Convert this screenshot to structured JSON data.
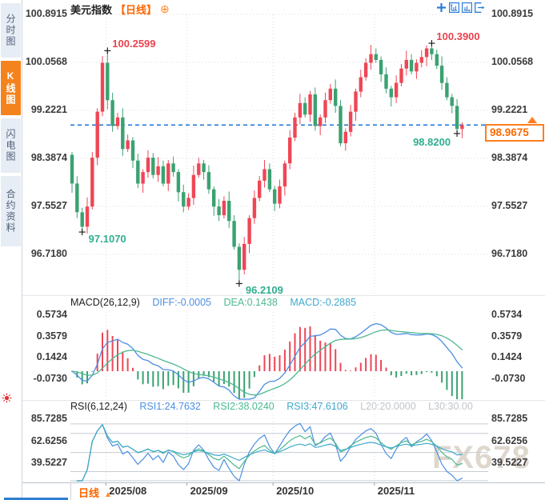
{
  "ui": {
    "sidebar": {
      "tabs": [
        {
          "label": "分时图",
          "name": "tab-time-share-chart",
          "active": false
        },
        {
          "label": "K线图",
          "name": "tab-kline-chart",
          "active": true
        },
        {
          "label": "闪电图",
          "name": "tab-lightning-chart",
          "active": false
        },
        {
          "label": "合约资料",
          "name": "tab-contract-info",
          "active": false
        }
      ]
    },
    "header": {
      "symbol": "美元指数",
      "period_tag": "【日线】"
    },
    "toolbar": {
      "icons": [
        "crosshair",
        "left-axis-panel",
        "right-axis-panel",
        "pop-out"
      ]
    },
    "price_tag": {
      "value": "98.9675"
    },
    "bottom_bar": {
      "period_label": "日线"
    },
    "watermark": "FX678"
  },
  "macd_panel": {
    "title": "MACD(26,12,9)",
    "diff": "DIFF:-0.0005",
    "dea": "DEA:0.1438",
    "macd": "MACD:-0.2885",
    "y_ticks": [
      "0.5734",
      "0.3579",
      "0.1424",
      "-0.0730"
    ]
  },
  "rsi_panel": {
    "title": "RSI(6,12,24)",
    "rsi1": "RSI1:24.7632",
    "rsi2": "RSI2:38.0240",
    "rsi3": "RSI3:47.6106",
    "l20": "L20:20.0000",
    "l30": "L30:30.00",
    "y_ticks": [
      "85.7285",
      "62.6256",
      "39.5227"
    ],
    "ref_lines": [
      80,
      70,
      50,
      30,
      20
    ]
  },
  "chart_data": {
    "type": "candlestick",
    "title": "美元指数 日线 (US Dollar Index, daily)",
    "y_ticks": [
      "100.8915",
      "100.0568",
      "99.2221",
      "98.3874",
      "97.5527",
      "96.7180"
    ],
    "ylim": [
      96.718,
      100.8915
    ],
    "x_month_ticks": [
      {
        "label": "2025/08",
        "index": 7
      },
      {
        "label": "2025/09",
        "index": 23
      },
      {
        "label": "2025/10",
        "index": 40
      },
      {
        "label": "2025/11",
        "index": 60
      }
    ],
    "current_price": 98.9675,
    "first_open": 98.45,
    "closes": [
      97.95,
      97.45,
      97.2,
      97.55,
      98.4,
      99.2,
      100.05,
      99.4,
      98.95,
      99.1,
      98.55,
      98.7,
      98.35,
      97.95,
      98.15,
      98.4,
      98.1,
      98.25,
      97.95,
      98.3,
      98.15,
      97.8,
      97.55,
      97.7,
      98.1,
      98.3,
      98.15,
      97.85,
      97.55,
      97.4,
      97.65,
      97.3,
      96.85,
      96.45,
      96.9,
      97.35,
      97.7,
      98.0,
      98.2,
      97.85,
      97.6,
      97.9,
      98.3,
      98.75,
      99.1,
      99.35,
      99.15,
      99.5,
      98.95,
      99.1,
      99.4,
      99.6,
      99.3,
      98.65,
      98.85,
      99.2,
      99.55,
      99.8,
      100.05,
      100.2,
      100.1,
      99.85,
      99.6,
      99.45,
      99.7,
      99.95,
      100.1,
      99.9,
      100.05,
      100.15,
      100.3,
      100.2,
      100.0,
      99.7,
      99.45,
      99.3,
      98.9,
      98.9675
    ],
    "wick_pattern": [
      0.05,
      0.13,
      0.08,
      0.16,
      0.1,
      0.06,
      0.12
    ],
    "wick_overrides": {
      "2": {
        "low": 97.107
      },
      "7": {
        "high": 100.2599
      },
      "33": {
        "low": 96.2109
      },
      "71": {
        "high": 100.39
      },
      "76": {
        "low": 98.82
      }
    },
    "marked_points": [
      {
        "text": "100.2599",
        "index": 7,
        "value": 100.2599,
        "kind": "high",
        "side": "right"
      },
      {
        "text": "100.3900",
        "index": 71,
        "value": 100.39,
        "kind": "high",
        "side": "right"
      },
      {
        "text": "98.8200",
        "index": 76,
        "value": 98.82,
        "kind": "low",
        "side": "left"
      },
      {
        "text": "97.1070",
        "index": 2,
        "value": 97.107,
        "kind": "low",
        "side": "right"
      },
      {
        "text": "96.2109",
        "index": 33,
        "value": 96.2109,
        "kind": "low",
        "side": "right"
      }
    ],
    "indicators": {
      "macd_params": [
        26,
        12,
        9
      ],
      "rsi_params": [
        6,
        12,
        24
      ]
    }
  },
  "colors": {
    "up": "#ef4656",
    "down": "#3aa271",
    "diff_line": "#4b8ee3",
    "dea_line": "#4cb98f",
    "rsi3_line": "#3fa9cd",
    "price_line": "#1a73d9",
    "accent_orange": "#ff6600",
    "tab_active": "#f5831d",
    "ann_high": "#e8434e",
    "ann_low": "#2fae8f",
    "watermark": "#d6cec2"
  }
}
